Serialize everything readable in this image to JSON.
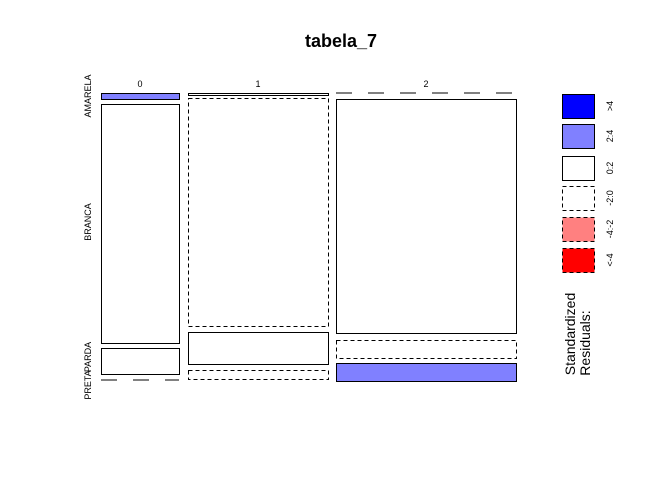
{
  "chart_data": {
    "type": "mosaic",
    "title": "tabela_7",
    "column_levels": [
      "0",
      "1",
      "2"
    ],
    "row_levels": [
      "AMARELA",
      "BRANCA",
      "PARDA",
      "PRETA"
    ],
    "column_proportions": [
      0.175,
      0.31,
      0.45
    ],
    "cells": [
      {
        "col": "0",
        "row": "AMARELA",
        "proportion": 0.015,
        "residual_class": "2:4"
      },
      {
        "col": "0",
        "row": "BRANCA",
        "proportion": 0.85,
        "residual_class": "0:2"
      },
      {
        "col": "0",
        "row": "PARDA",
        "proportion": 0.1,
        "residual_class": "0:2"
      },
      {
        "col": "0",
        "row": "PRETA",
        "proportion": 0.0,
        "residual_class": "-2:0"
      },
      {
        "col": "1",
        "row": "AMARELA",
        "proportion": 0.004,
        "residual_class": "0:2"
      },
      {
        "col": "1",
        "row": "BRANCA",
        "proportion": 0.82,
        "residual_class": "-2:0"
      },
      {
        "col": "1",
        "row": "PARDA",
        "proportion": 0.12,
        "residual_class": "0:2"
      },
      {
        "col": "1",
        "row": "PRETA",
        "proportion": 0.03,
        "residual_class": "-2:0"
      },
      {
        "col": "2",
        "row": "AMARELA",
        "proportion": 0.0,
        "residual_class": "-2:0"
      },
      {
        "col": "2",
        "row": "BRANCA",
        "proportion": 0.84,
        "residual_class": "0:2"
      },
      {
        "col": "2",
        "row": "PARDA",
        "proportion": 0.065,
        "residual_class": "-2:0"
      },
      {
        "col": "2",
        "row": "PRETA",
        "proportion": 0.065,
        "residual_class": "2:4"
      }
    ],
    "legend": {
      "title_line1": "Standardized",
      "title_line2": "Residuals:",
      "entries": [
        {
          "label": ">4",
          "fill": "#0000FF",
          "dashed": false
        },
        {
          "label": "2:4",
          "fill": "#8080FF",
          "dashed": false
        },
        {
          "label": "0:2",
          "fill": "#FFFFFF",
          "dashed": false
        },
        {
          "label": "-2:0",
          "fill": "#FFFFFF",
          "dashed": true
        },
        {
          "label": "-4:-2",
          "fill": "#FF8080",
          "dashed": true
        },
        {
          "label": "<-4",
          "fill": "#FF0000",
          "dashed": true
        }
      ]
    }
  }
}
